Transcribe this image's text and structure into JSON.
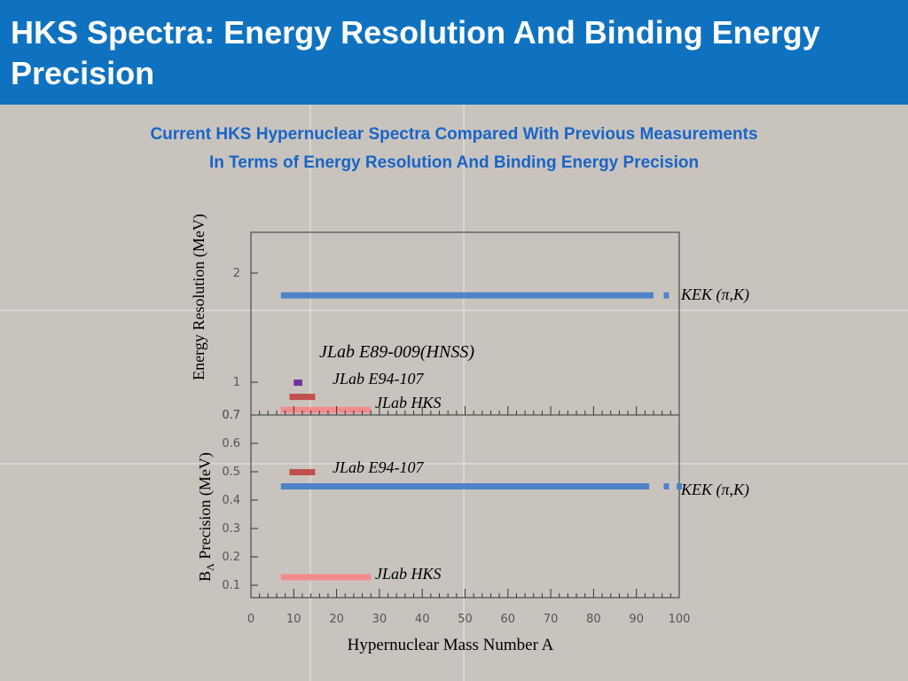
{
  "slide": {
    "title": "HKS Spectra: Energy Resolution And Binding Energy Precision",
    "subtitle_line1": "Current HKS Hypernuclear Spectra Compared With Previous Measurements",
    "subtitle_line2": "In Terms of Energy Resolution And Binding Energy Precision"
  },
  "colors": {
    "header": "#0f72c0",
    "subtitle": "#1a64c8",
    "kek": "#4f82c8",
    "hnss": "#7030a0",
    "e94": "#c0504d",
    "hks": "#f28c8c"
  },
  "chart_data": [
    {
      "type": "bar",
      "orientation": "horizontal-range",
      "ylabel": "Energy Resolution (MeV)",
      "yticks": [
        "0.7",
        "1",
        "2"
      ],
      "ylim": [
        0.7,
        2.4
      ],
      "series": [
        {
          "name": "KEK (π,K)",
          "x_range": [
            7,
            94
          ],
          "y": 1.8,
          "extra_points": [
            97
          ]
        },
        {
          "name": "JLab E89-009(HNSS)",
          "x_range": [
            10,
            12
          ],
          "y": 1.0
        },
        {
          "name": "JLab E94-107",
          "x_range": [
            9,
            15
          ],
          "y": 0.87
        },
        {
          "name": "JLab HKS",
          "x_range": [
            7,
            28
          ],
          "y": 0.75
        }
      ]
    },
    {
      "type": "bar",
      "orientation": "horizontal-range",
      "ylabel_main": "B",
      "ylabel_sub": "Λ",
      "ylabel_rest": " Precision (MeV)",
      "xlabel": "Hypernuclear Mass Number A",
      "xticks": [
        "0",
        "10",
        "20",
        "30",
        "40",
        "50",
        "60",
        "70",
        "80",
        "90",
        "100"
      ],
      "yticks": [
        "0.1",
        "0.2",
        "0.3",
        "0.4",
        "0.5",
        "0.6",
        "0.7"
      ],
      "xlim": [
        0,
        100
      ],
      "ylim": [
        0.03,
        0.7
      ],
      "series": [
        {
          "name": "JLab E94-107",
          "x_range": [
            9,
            15
          ],
          "y": 0.5
        },
        {
          "name": "KEK (π,K)",
          "x_range": [
            7,
            93
          ],
          "y": 0.45,
          "extra_points": [
            97,
            100
          ]
        },
        {
          "name": "JLab HKS",
          "x_range": [
            7,
            28
          ],
          "y": 0.13
        }
      ]
    }
  ]
}
